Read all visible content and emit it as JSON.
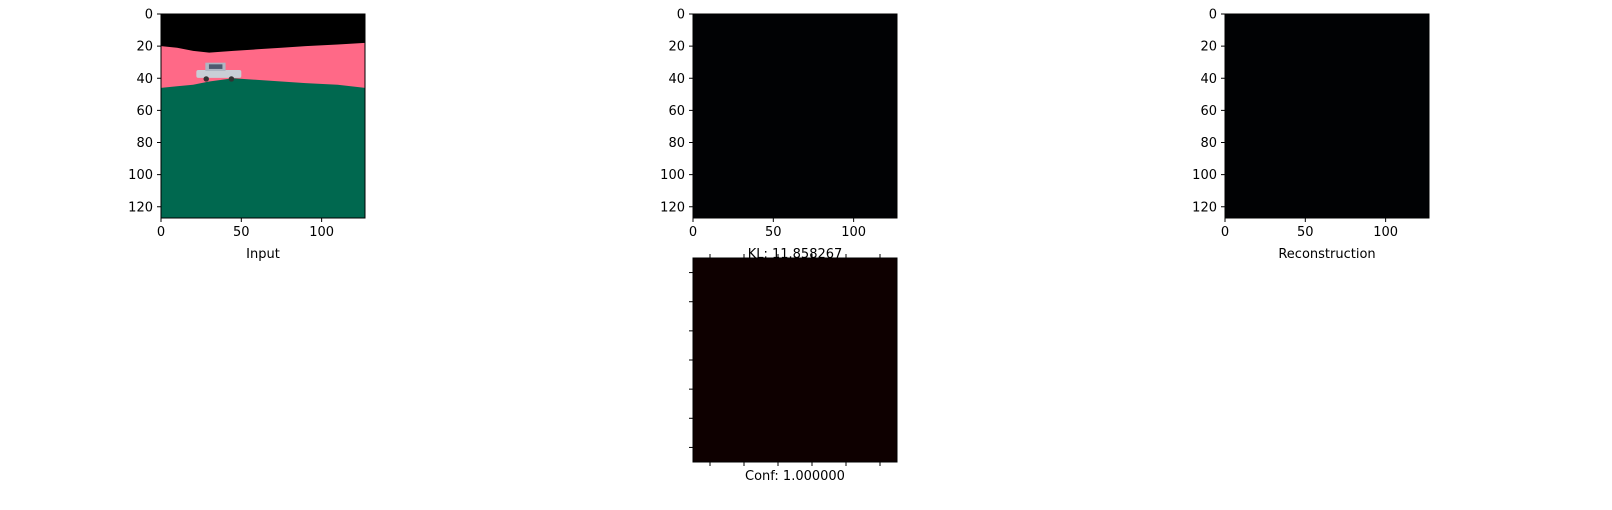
{
  "chart_data": [
    {
      "type": "image",
      "panel": "input",
      "title": "",
      "xlabel": "Input",
      "ylabel": "",
      "xlim": [
        0,
        127
      ],
      "ylim": [
        127,
        0
      ],
      "xticks": [
        0,
        50,
        100
      ],
      "yticks": [
        0,
        20,
        40,
        60,
        80,
        100,
        120
      ],
      "regions": [
        {
          "name": "sky",
          "color": "#000000"
        },
        {
          "name": "band",
          "color": "#ff6987"
        },
        {
          "name": "ground",
          "color": "#00684f"
        }
      ],
      "band_top_profile": {
        "x": [
          0,
          10,
          20,
          30,
          45,
          60,
          75,
          90,
          110,
          127
        ],
        "y": [
          20,
          21,
          23,
          24,
          23,
          22,
          21,
          20,
          19,
          18
        ]
      },
      "ground_top_profile": {
        "x": [
          0,
          10,
          20,
          30,
          45,
          60,
          75,
          90,
          110,
          127
        ],
        "y": [
          46,
          45,
          44,
          42,
          40,
          41,
          42,
          43,
          44,
          46
        ]
      },
      "object": {
        "name": "car",
        "x_range": [
          22,
          50
        ],
        "y_range": [
          29,
          42
        ]
      }
    },
    {
      "type": "image",
      "panel": "kl",
      "title": "",
      "xlabel": "KL: 11.858267",
      "ylabel": "",
      "xlim": [
        0,
        127
      ],
      "ylim": [
        127,
        0
      ],
      "xticks": [
        0,
        50,
        100
      ],
      "yticks": [
        0,
        20,
        40,
        60,
        80,
        100,
        120
      ],
      "fill_color": "#010204"
    },
    {
      "type": "image",
      "panel": "reconstruction",
      "title": "",
      "xlabel": "Reconstruction",
      "ylabel": "",
      "xlim": [
        0,
        127
      ],
      "ylim": [
        127,
        0
      ],
      "xticks": [
        0,
        50,
        100
      ],
      "yticks": [
        0,
        20,
        40,
        60,
        80,
        100,
        120
      ],
      "fill_color": "#010204"
    },
    {
      "type": "heatmap",
      "panel": "confidence",
      "title": "",
      "xlabel": "Conf: 1.000000",
      "ylabel": "",
      "tick_labels_shown": false,
      "x_tick_count": 6,
      "y_tick_count": 7,
      "value": 1.0,
      "fill_color": "#0e0000"
    }
  ]
}
